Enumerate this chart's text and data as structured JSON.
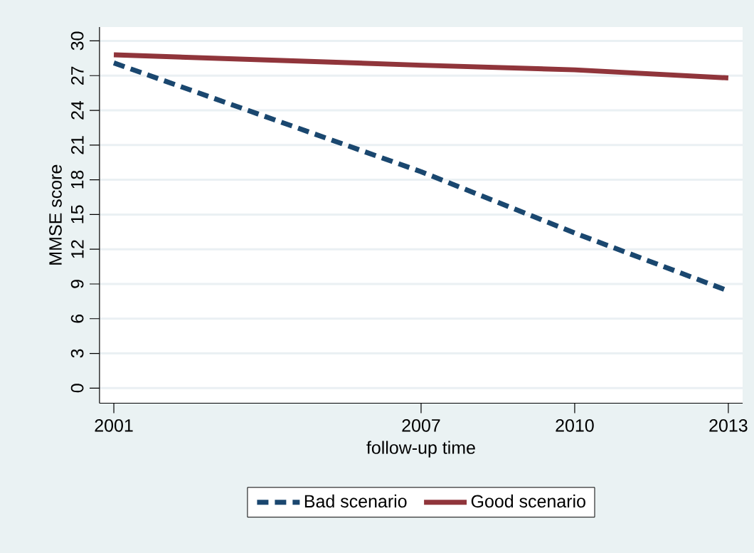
{
  "chart_data": {
    "type": "line",
    "xlabel": "follow-up time",
    "ylabel": "MMSE score",
    "x": [
      2001,
      2007,
      2010,
      2013
    ],
    "series": [
      {
        "name": "Bad scenario",
        "color": "#1a476f",
        "line_style": "dashed",
        "values": [
          28.1,
          18.7,
          13.4,
          8.4
        ]
      },
      {
        "name": "Good scenario",
        "color": "#90353b",
        "line_style": "solid",
        "values": [
          28.8,
          27.9,
          27.5,
          26.8
        ]
      }
    ],
    "xlim": [
      2000.72,
      2013.28
    ],
    "ylim": [
      -1.3,
      31.2
    ],
    "xticks": [
      2001,
      2007,
      2010,
      2013
    ],
    "yticks": [
      0,
      3,
      6,
      9,
      12,
      15,
      18,
      21,
      24,
      27,
      30
    ],
    "grid": "y",
    "legend": "bottom",
    "marker": "none"
  }
}
